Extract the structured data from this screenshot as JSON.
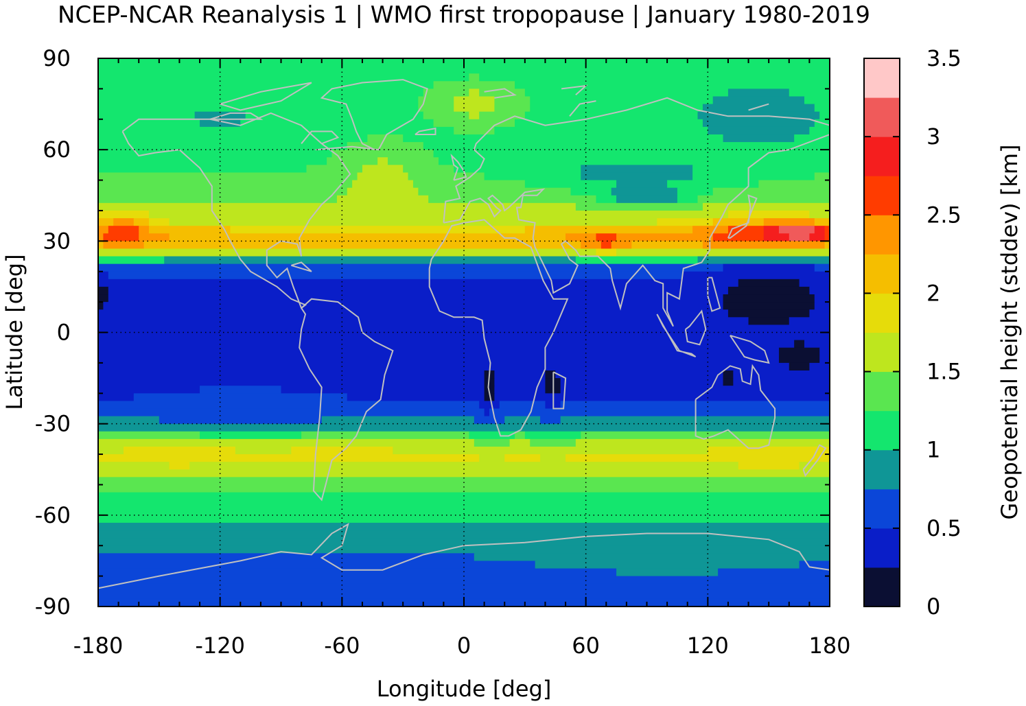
{
  "chart_data": {
    "type": "heatmap",
    "title": "NCEP-NCAR Reanalysis 1 | WMO first tropopause | January 1980-2019",
    "xlabel": "Longitude [deg]",
    "ylabel": "Latitude [deg]",
    "colorbar_label": "Geopotential height (stddev) [km]",
    "xlim": [
      -180,
      180
    ],
    "ylim": [
      -90,
      90
    ],
    "x_ticks": [
      -180,
      -120,
      -60,
      0,
      60,
      120,
      180
    ],
    "y_ticks": [
      90,
      60,
      30,
      0,
      -30,
      -60,
      -90
    ],
    "colorbar_range": [
      0,
      3.5
    ],
    "colorbar_ticks": [
      "3.5",
      "3",
      "2.5",
      "2",
      "1.5",
      "1",
      "0.5",
      "0"
    ],
    "colorbar_levels": [
      {
        "from": 0.0,
        "to": 0.25,
        "color": "#0b0f33"
      },
      {
        "from": 0.25,
        "to": 0.5,
        "color": "#0a1ec8"
      },
      {
        "from": 0.5,
        "to": 0.75,
        "color": "#0b46d8"
      },
      {
        "from": 0.75,
        "to": 1.0,
        "color": "#0f9696"
      },
      {
        "from": 1.0,
        "to": 1.25,
        "color": "#14e66e"
      },
      {
        "from": 1.25,
        "to": 1.5,
        "color": "#5ae650"
      },
      {
        "from": 1.5,
        "to": 1.75,
        "color": "#bee61e"
      },
      {
        "from": 1.75,
        "to": 2.0,
        "color": "#e6dc0a"
      },
      {
        "from": 2.0,
        "to": 2.25,
        "color": "#f5be00"
      },
      {
        "from": 2.25,
        "to": 2.5,
        "color": "#ff9600"
      },
      {
        "from": 2.5,
        "to": 2.75,
        "color": "#ff3c00"
      },
      {
        "from": 2.75,
        "to": 3.0,
        "color": "#f51e1e"
      },
      {
        "from": 3.0,
        "to": 3.25,
        "color": "#f05a5a"
      },
      {
        "from": 3.25,
        "to": 3.5,
        "color": "#ffc8c8"
      }
    ],
    "zonal_profile_approx": [
      {
        "lat": -90,
        "value": 0.7
      },
      {
        "lat": -75,
        "value": 0.7
      },
      {
        "lat": -65,
        "value": 0.9
      },
      {
        "lat": -58,
        "value": 1.1
      },
      {
        "lat": -50,
        "value": 1.3
      },
      {
        "lat": -45,
        "value": 1.6
      },
      {
        "lat": -40,
        "value": 1.8
      },
      {
        "lat": -35,
        "value": 1.4
      },
      {
        "lat": -30,
        "value": 0.8
      },
      {
        "lat": -20,
        "value": 0.45
      },
      {
        "lat": 0,
        "value": 0.4
      },
      {
        "lat": 15,
        "value": 0.45
      },
      {
        "lat": 22,
        "value": 0.6
      },
      {
        "lat": 26,
        "value": 1.5
      },
      {
        "lat": 30,
        "value": 2.3
      },
      {
        "lat": 33,
        "value": 2.1
      },
      {
        "lat": 36,
        "value": 1.7
      },
      {
        "lat": 42,
        "value": 1.5
      },
      {
        "lat": 55,
        "value": 1.2
      },
      {
        "lat": 70,
        "value": 1.1
      },
      {
        "lat": 90,
        "value": 1.1
      }
    ],
    "anomalies": [
      {
        "lon": -168,
        "lat": 33,
        "dlon": 14,
        "dlat": 5,
        "value": 2.7
      },
      {
        "lon": 145,
        "lat": 32,
        "dlon": 35,
        "dlat": 5,
        "value": 2.7
      },
      {
        "lon": 165,
        "lat": 33,
        "dlon": 15,
        "dlat": 3,
        "value": 3.3
      },
      {
        "lon": 70,
        "lat": 30,
        "dlon": 14,
        "dlat": 3,
        "value": 2.6
      },
      {
        "lon": 150,
        "lat": 11,
        "dlon": 30,
        "dlat": 10,
        "value": 0.1
      },
      {
        "lon": 165,
        "lat": -8,
        "dlon": 14,
        "dlat": 5,
        "value": 0.1
      },
      {
        "lon": 12,
        "lat": -18,
        "dlon": 4,
        "dlat": 8,
        "value": 0.1
      },
      {
        "lon": 43,
        "lat": -17,
        "dlon": 5,
        "dlat": 6,
        "value": 0.1
      },
      {
        "lon": 130,
        "lat": -15,
        "dlon": 5,
        "dlat": 5,
        "value": 0.1
      },
      {
        "lon": -178,
        "lat": 12,
        "dlon": 4,
        "dlat": 5,
        "value": 0.1
      },
      {
        "lon": 90,
        "lat": 45,
        "dlon": 20,
        "dlat": 3,
        "value": 0.6
      },
      {
        "lon": 145,
        "lat": 70,
        "dlon": 35,
        "dlat": 12,
        "value": 0.9
      },
      {
        "lon": 85,
        "lat": 52,
        "dlon": 50,
        "dlat": 6,
        "value": 0.9
      },
      {
        "lon": 100,
        "lat": -72,
        "dlon": 70,
        "dlat": 6,
        "value": 0.9
      },
      {
        "lon": 5,
        "lat": 75,
        "dlon": 25,
        "dlat": 8,
        "value": 1.6
      },
      {
        "lon": -40,
        "lat": 50,
        "dlon": 22,
        "dlat": 12,
        "value": 1.6
      },
      {
        "lon": -140,
        "lat": -40,
        "dlon": 25,
        "dlat": 4,
        "value": 1.9
      },
      {
        "lon": 150,
        "lat": -40,
        "dlon": 25,
        "dlat": 5,
        "value": 1.9
      },
      {
        "lon": -60,
        "lat": -40,
        "dlon": 25,
        "dlat": 4,
        "value": 1.85
      },
      {
        "lon": -110,
        "lat": -25,
        "dlon": 30,
        "dlat": 6,
        "value": 0.7
      },
      {
        "lon": -120,
        "lat": 70,
        "dlon": 15,
        "dlat": 4,
        "value": 0.9
      }
    ],
    "grid": true
  }
}
